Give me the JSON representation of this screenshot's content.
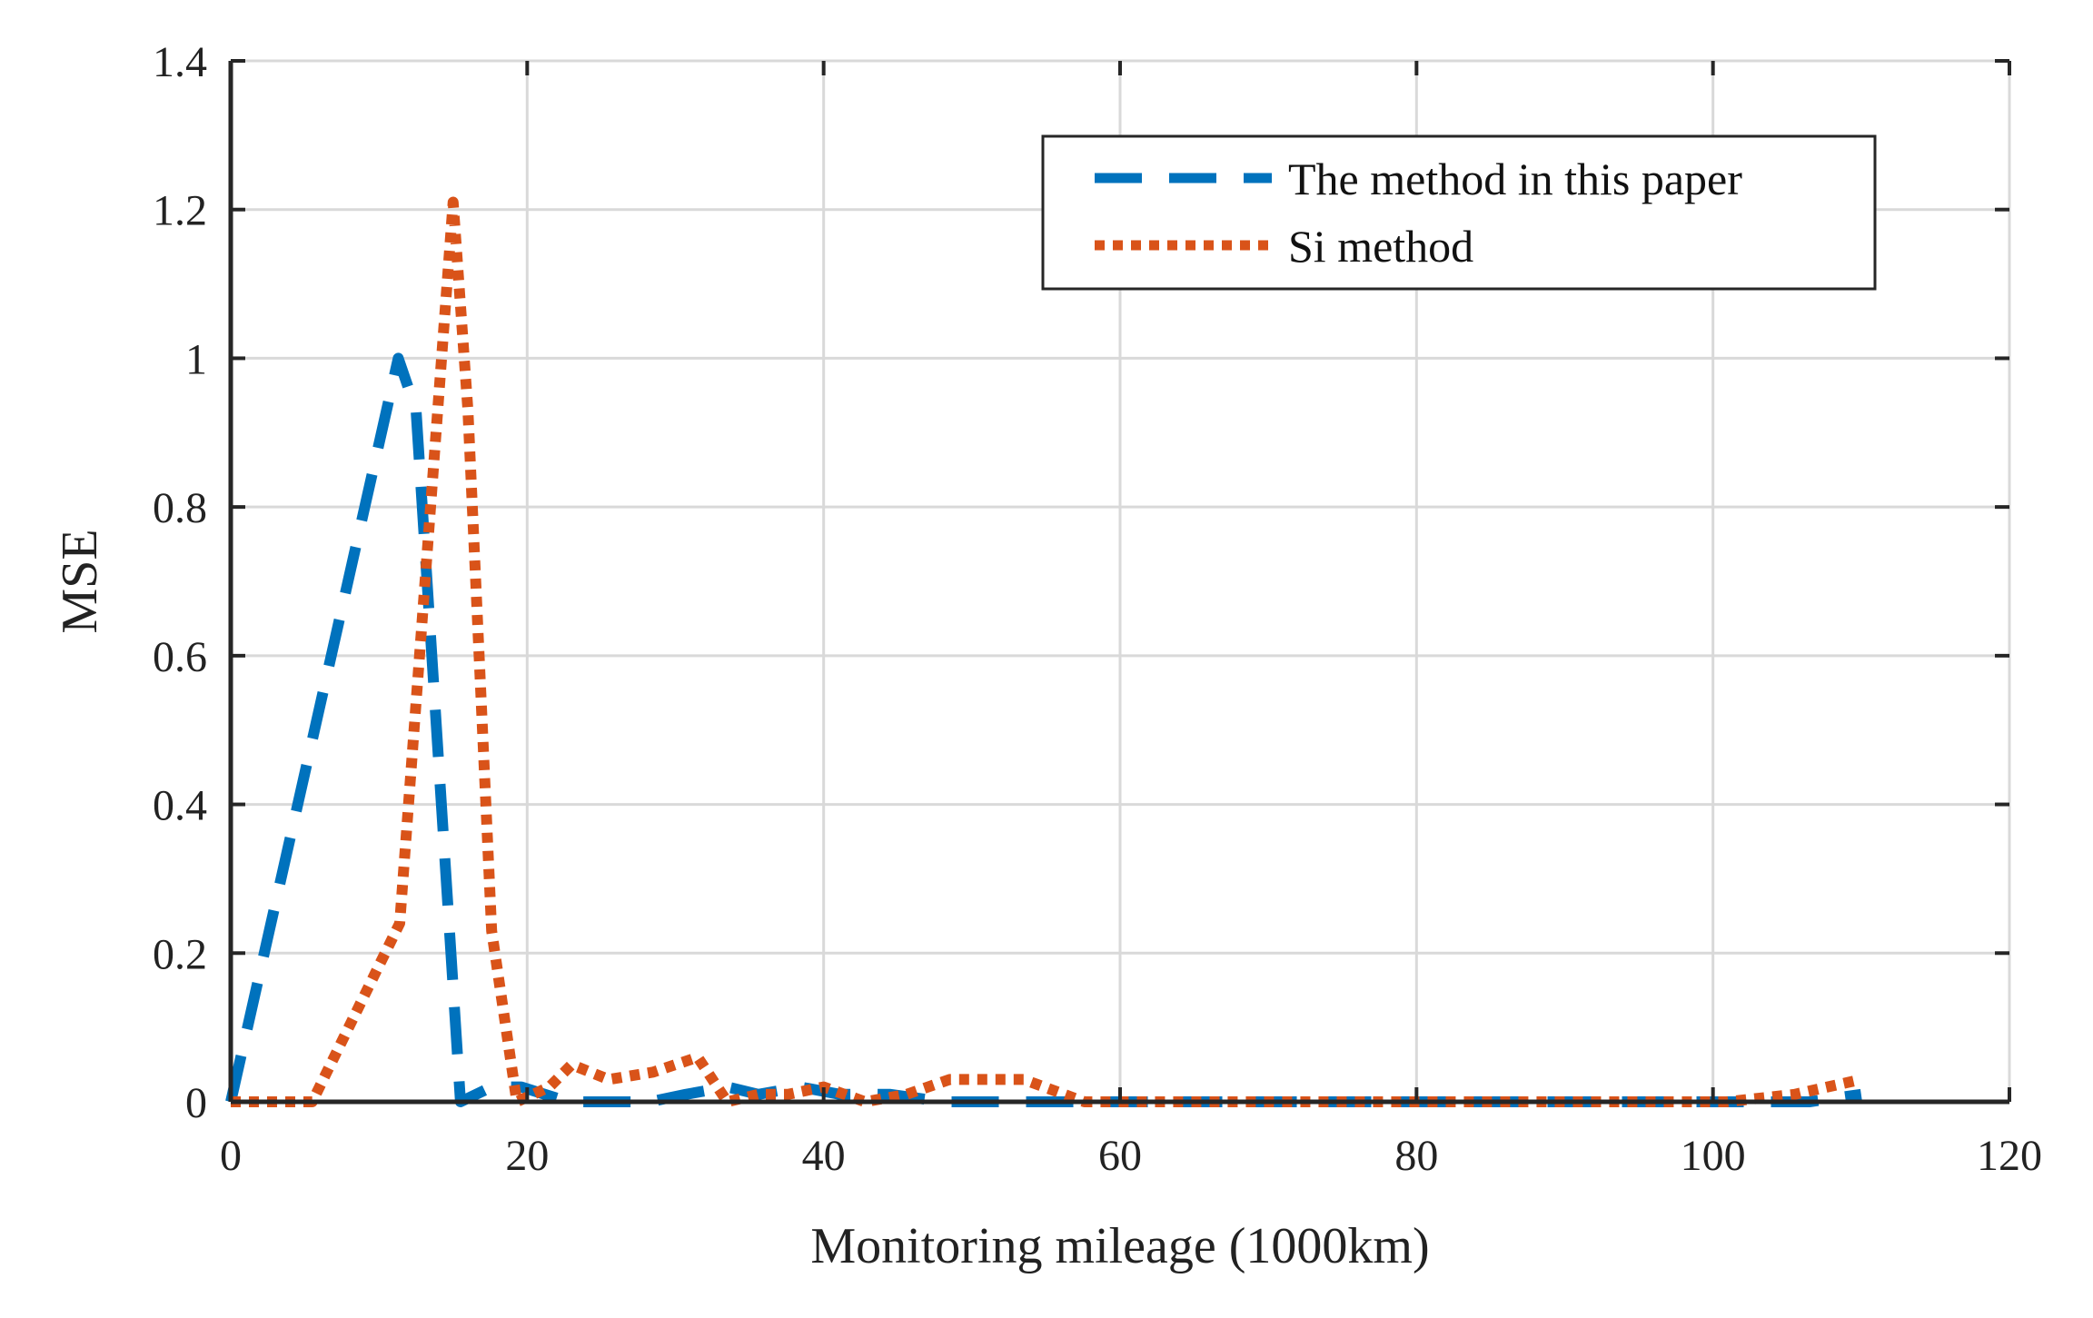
{
  "chart_data": {
    "type": "line",
    "xlabel": "Monitoring mileage (1000km)",
    "ylabel": "MSE",
    "xlim": [
      0,
      120
    ],
    "ylim": [
      0,
      1.4
    ],
    "xticks": [
      0,
      20,
      40,
      60,
      80,
      100,
      120
    ],
    "yticks": [
      0,
      0.2,
      0.4,
      0.6,
      0.8,
      1,
      1.2,
      1.4
    ],
    "xtick_labels": [
      "0",
      "20",
      "40",
      "60",
      "80",
      "100",
      "120"
    ],
    "ytick_labels": [
      "0",
      "0.2",
      "0.4",
      "0.6",
      "0.8",
      "1",
      "1.2",
      "1.4"
    ],
    "grid": true,
    "legend_position": "top-right",
    "series": [
      {
        "name": "The method in this paper",
        "color": "#0072BD",
        "style": "dashed",
        "x": [
          0,
          11.3,
          12.5,
          15.5,
          17.6,
          19.6,
          22.8,
          25.8,
          28.3,
          30.7,
          33.5,
          35.6,
          38.4,
          41.1,
          44.5,
          48.1,
          52.7,
          55.2,
          57.6,
          64.2,
          69.4,
          72.3,
          77.2,
          82.7,
          86.3,
          90.5,
          95.9,
          100.4,
          103.6,
          106.5,
          110.0
        ],
        "y": [
          0,
          1.0,
          0.93,
          0,
          0.02,
          0.02,
          0,
          0,
          0,
          0.01,
          0.02,
          0.01,
          0.02,
          0.01,
          0.01,
          0,
          0,
          0,
          0,
          0,
          0,
          0,
          0,
          0,
          0,
          0,
          0,
          0,
          0,
          0,
          0.01
        ]
      },
      {
        "name": "Si method",
        "color": "#D95319",
        "style": "dotted",
        "x": [
          0,
          5.5,
          11.4,
          15.0,
          16.0,
          17.6,
          19.3,
          21.5,
          23.0,
          25.5,
          28.5,
          31.5,
          33.5,
          35.6,
          37.6,
          40.0,
          42.8,
          45.6,
          48.5,
          53.5,
          57.6,
          63.2,
          70.2,
          75.3,
          82.6,
          90.2,
          95.5,
          100.9,
          105.5,
          110.0
        ],
        "y": [
          0,
          0,
          0.24,
          1.21,
          0.93,
          0.23,
          0,
          0.02,
          0.05,
          0.03,
          0.04,
          0.06,
          0,
          0.01,
          0.01,
          0.02,
          0,
          0.01,
          0.03,
          0.03,
          0,
          0,
          0,
          0,
          0,
          0,
          0,
          0,
          0.01,
          0.03
        ]
      }
    ]
  }
}
